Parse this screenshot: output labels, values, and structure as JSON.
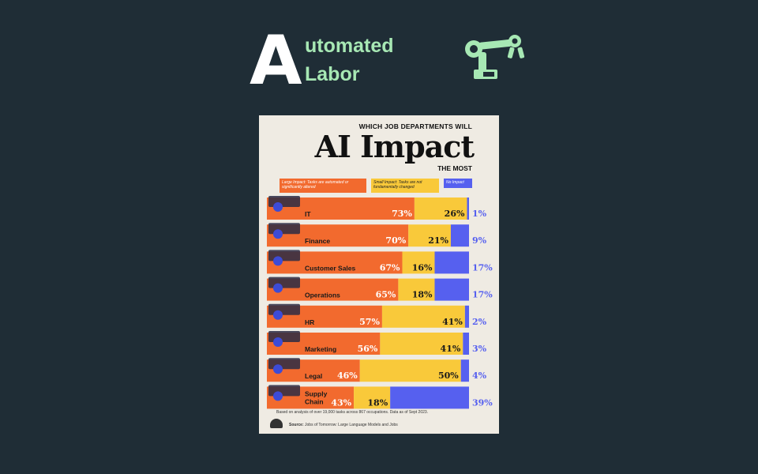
{
  "brand": {
    "letter": "A",
    "line1": "utomated",
    "line2": "Labor",
    "icon": "robot-arm-icon",
    "accent": "#a7e8b4"
  },
  "poster": {
    "subtitle_top": "WHICH JOB DEPARTMENTS WILL",
    "title": "AI Impact",
    "subtitle_bottom": "THE MOST",
    "legend": {
      "large": "Large Impact: Tasks are automated or significantly altered",
      "small": "Small Impact: Tasks are not fundamentally changed",
      "none": "No Impact"
    },
    "footnote": "Based on analysis of over 19,000 tasks across 867 occupations. Data as of Sept 2023.",
    "source_label": "Source:",
    "source_text": "Jobs of Tomorrow: Large Language Models and Jobs"
  },
  "chart_data": {
    "type": "bar",
    "orientation": "horizontal",
    "stacked": true,
    "categories": [
      "IT",
      "Finance",
      "Customer Sales",
      "Operations",
      "HR",
      "Marketing",
      "Legal",
      "Supply Chain"
    ],
    "series": [
      {
        "name": "Large Impact",
        "color": "#f26a2e",
        "values": [
          73,
          70,
          67,
          65,
          57,
          56,
          46,
          43
        ]
      },
      {
        "name": "Small Impact",
        "color": "#f9c93a",
        "values": [
          26,
          21,
          16,
          18,
          41,
          41,
          50,
          18
        ]
      },
      {
        "name": "No Impact",
        "color": "#5660ef",
        "values": [
          1,
          9,
          17,
          17,
          2,
          3,
          4,
          39
        ]
      }
    ],
    "value_labels": {
      "large": [
        "73%",
        "70%",
        "67%",
        "65%",
        "57%",
        "56%",
        "46%",
        "43%"
      ],
      "small": [
        "26%",
        "21%",
        "16%",
        "18%",
        "41%",
        "41%",
        "50%",
        "18%"
      ],
      "none": [
        "1%",
        "9%",
        "17%",
        "17%",
        "2%",
        "3%",
        "4%",
        "39%"
      ]
    },
    "xlim": [
      0,
      100
    ]
  }
}
